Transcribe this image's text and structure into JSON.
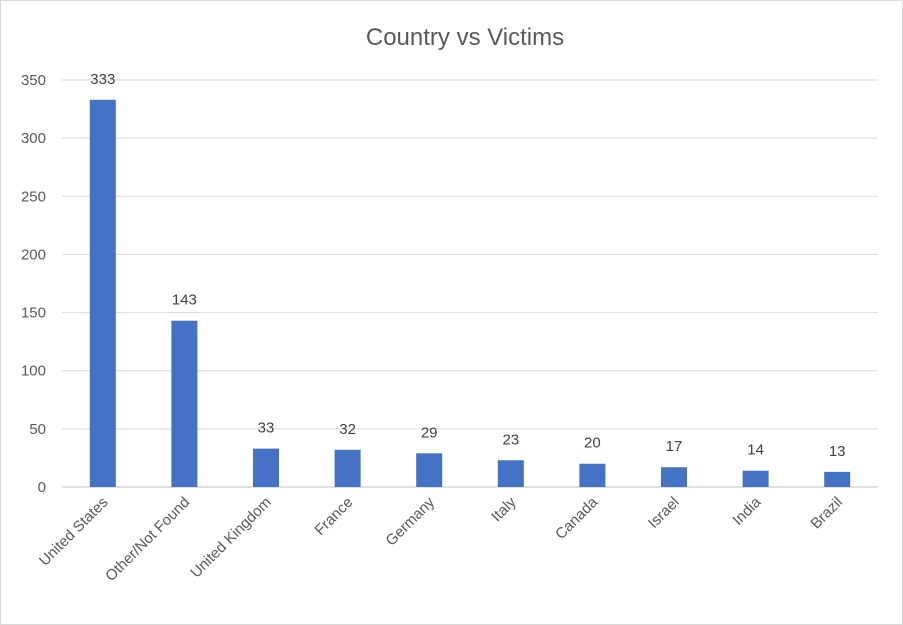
{
  "chart_data": {
    "type": "bar",
    "title": "Country vs Victims",
    "xlabel": "",
    "ylabel": "",
    "categories": [
      "United States",
      "Other/Not Found",
      "United Kingdom",
      "France",
      "Germany",
      "Italy",
      "Canada",
      "Israel",
      "India",
      "Brazil"
    ],
    "series": [
      {
        "name": "Victims",
        "values": [
          333,
          143,
          33,
          32,
          29,
          23,
          20,
          17,
          14,
          13
        ]
      }
    ],
    "ylim": [
      0,
      350
    ],
    "yticks": [
      0,
      50,
      100,
      150,
      200,
      250,
      300,
      350
    ],
    "grid": true,
    "legend": "none",
    "bar_color": "#4472c4"
  }
}
